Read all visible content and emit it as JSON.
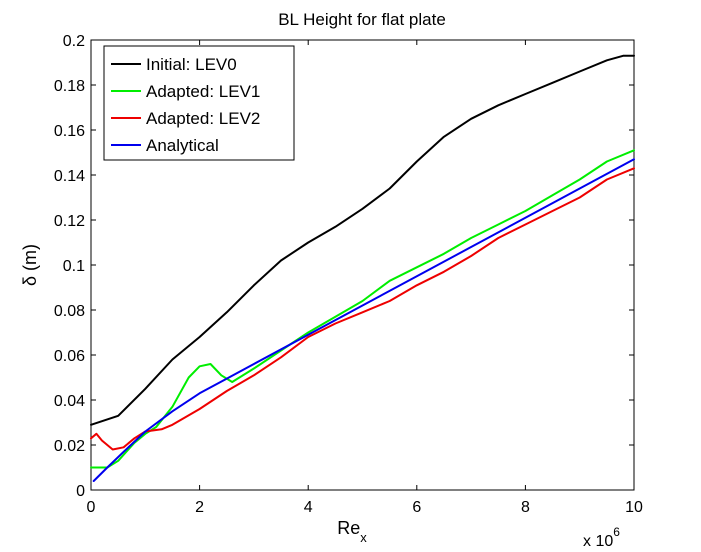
{
  "chart_data": {
    "type": "line",
    "title": "BL Height for flat plate",
    "xlabel_main": "Re",
    "xlabel_sub": "x",
    "ylabel": "δ (m)",
    "x_scale_label": "x 10",
    "x_scale_exponent": "6",
    "xlim": [
      0,
      10
    ],
    "ylim": [
      0,
      0.2
    ],
    "x_ticks": [
      0,
      2,
      4,
      6,
      8,
      10
    ],
    "x_tick_labels": [
      "0",
      "2",
      "4",
      "6",
      "8",
      "10"
    ],
    "y_ticks": [
      0,
      0.02,
      0.04,
      0.06,
      0.08,
      0.1,
      0.12,
      0.14,
      0.16,
      0.18,
      0.2
    ],
    "y_tick_labels": [
      "0",
      "0.02",
      "0.04",
      "0.06",
      "0.08",
      "0.1",
      "0.12",
      "0.14",
      "0.16",
      "0.18",
      "0.2"
    ],
    "grid": false,
    "legend_position": "top-left",
    "series": [
      {
        "name": "Initial: LEV0",
        "color": "#000000",
        "x": [
          0,
          0.5,
          1.0,
          1.5,
          2.0,
          2.5,
          3.0,
          3.5,
          4.0,
          4.5,
          5.0,
          5.5,
          6.0,
          6.5,
          7.0,
          7.5,
          8.0,
          8.5,
          9.0,
          9.5,
          9.8,
          10.0
        ],
        "y": [
          0.029,
          0.033,
          0.045,
          0.058,
          0.068,
          0.079,
          0.091,
          0.102,
          0.11,
          0.117,
          0.125,
          0.134,
          0.146,
          0.157,
          0.165,
          0.171,
          0.176,
          0.181,
          0.186,
          0.191,
          0.193,
          0.193
        ]
      },
      {
        "name": "Adapted: LEV1",
        "color": "#00ee00",
        "x": [
          0,
          0.3,
          0.5,
          0.8,
          1.0,
          1.2,
          1.5,
          1.8,
          2.0,
          2.2,
          2.4,
          2.6,
          3.0,
          3.5,
          4.0,
          4.5,
          5.0,
          5.5,
          6.0,
          6.5,
          7.0,
          7.5,
          8.0,
          8.5,
          9.0,
          9.5,
          10.0
        ],
        "y": [
          0.01,
          0.01,
          0.013,
          0.021,
          0.025,
          0.028,
          0.037,
          0.05,
          0.055,
          0.056,
          0.051,
          0.048,
          0.054,
          0.062,
          0.07,
          0.077,
          0.084,
          0.093,
          0.099,
          0.105,
          0.112,
          0.118,
          0.124,
          0.131,
          0.138,
          0.146,
          0.151
        ]
      },
      {
        "name": "Adapted: LEV2",
        "color": "#ee0000",
        "x": [
          0,
          0.1,
          0.2,
          0.4,
          0.6,
          0.8,
          1.0,
          1.3,
          1.5,
          2.0,
          2.5,
          3.0,
          3.5,
          4.0,
          4.5,
          5.0,
          5.5,
          6.0,
          6.5,
          7.0,
          7.5,
          8.0,
          8.5,
          9.0,
          9.5,
          10.0
        ],
        "y": [
          0.023,
          0.025,
          0.022,
          0.018,
          0.019,
          0.023,
          0.026,
          0.027,
          0.029,
          0.036,
          0.044,
          0.051,
          0.059,
          0.068,
          0.074,
          0.079,
          0.084,
          0.091,
          0.097,
          0.104,
          0.112,
          0.118,
          0.124,
          0.13,
          0.138,
          0.143
        ]
      },
      {
        "name": "Analytical",
        "color": "#0000ee",
        "x": [
          0.05,
          0.3,
          0.6,
          1.0,
          1.5,
          2.0,
          3.0,
          4.0,
          5.0,
          6.0,
          7.0,
          8.0,
          9.0,
          10.0
        ],
        "y": [
          0.004,
          0.01,
          0.017,
          0.026,
          0.035,
          0.043,
          0.056,
          0.069,
          0.082,
          0.095,
          0.108,
          0.121,
          0.134,
          0.147
        ]
      }
    ]
  }
}
